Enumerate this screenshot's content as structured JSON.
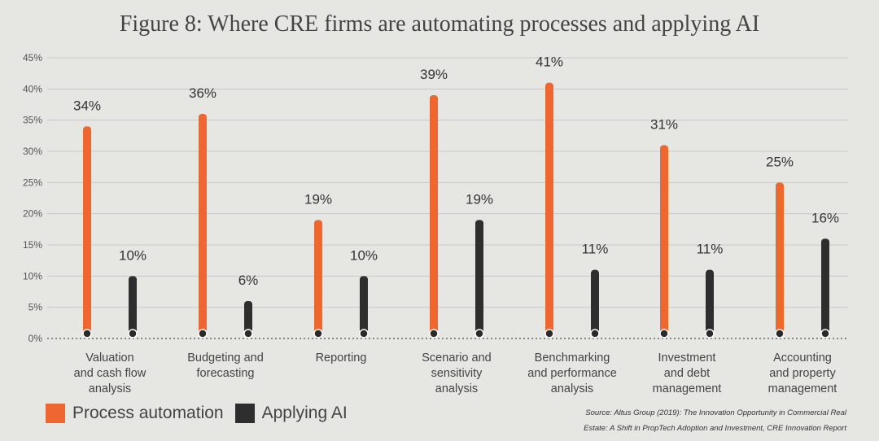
{
  "chart_data": {
    "type": "bar",
    "title": "Figure 8: Where CRE firms are automating processes and applying AI",
    "categories": [
      [
        "Valuation",
        "and cash flow",
        "analysis"
      ],
      [
        "Budgeting and",
        "forecasting"
      ],
      [
        "Reporting"
      ],
      [
        "Scenario and",
        "sensitivity",
        "analysis"
      ],
      [
        "Benchmarking",
        "and performance",
        "analysis"
      ],
      [
        "Investment",
        "and debt",
        "management"
      ],
      [
        "Accounting",
        "and property",
        "management"
      ]
    ],
    "series": [
      {
        "name": "Process automation",
        "color": "#ee6731",
        "values": [
          34,
          36,
          19,
          39,
          41,
          31,
          25
        ],
        "labels": [
          "34%",
          "36%",
          "19%",
          "39%",
          "41%",
          "31%",
          "25%"
        ]
      },
      {
        "name": "Applying AI",
        "color": "#2e2e2e",
        "values": [
          10,
          6,
          10,
          19,
          11,
          11,
          16
        ],
        "labels": [
          "10%",
          "6%",
          "10%",
          "19%",
          "11%",
          "11%",
          "16%"
        ]
      }
    ],
    "ylim": [
      0,
      45
    ],
    "yticks": [
      "0%",
      "5%",
      "10%",
      "15%",
      "20%",
      "25%",
      "30%",
      "35%",
      "40%",
      "45%"
    ],
    "grid": true,
    "legend": "bottom-left"
  },
  "source": {
    "line1": "Source:  Altus Group (2019): The Innovation Opportunity in Commercial Real",
    "line2": "Estate: A Shift in PropTech Adoption and Investment, CRE Innovation Report"
  }
}
